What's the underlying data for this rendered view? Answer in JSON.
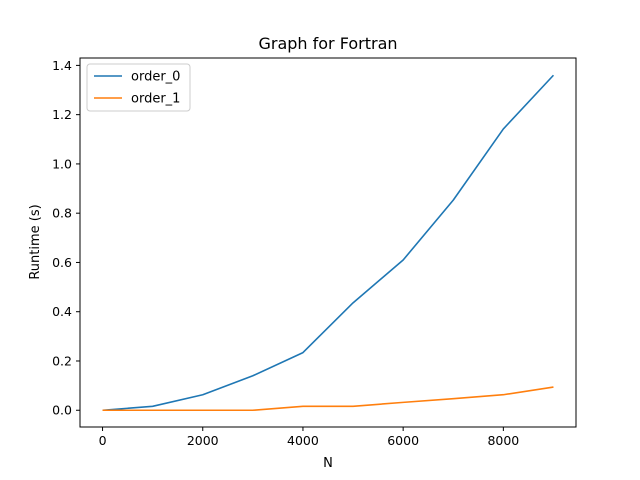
{
  "chart_data": {
    "type": "line",
    "title": "Graph for Fortran",
    "xlabel": "N",
    "ylabel": "Runtime (s)",
    "xlim": [
      -450,
      9450
    ],
    "ylim": [
      -0.068,
      1.43
    ],
    "xticks": [
      0,
      2000,
      4000,
      6000,
      8000
    ],
    "xtick_labels": [
      "0",
      "2000",
      "4000",
      "6000",
      "8000"
    ],
    "yticks": [
      0.0,
      0.2,
      0.4,
      0.6,
      0.8,
      1.0,
      1.2,
      1.4
    ],
    "ytick_labels": [
      "0.0",
      "0.2",
      "0.4",
      "0.6",
      "0.8",
      "1.0",
      "1.2",
      "1.4"
    ],
    "grid": false,
    "legend_position": "top-left",
    "x": [
      0,
      1000,
      2000,
      3000,
      4000,
      5000,
      6000,
      7000,
      8000,
      9000
    ],
    "series": [
      {
        "name": "order_0",
        "color": "#1f77b4",
        "values": [
          0.0,
          0.016,
          0.063,
          0.14,
          0.234,
          0.436,
          0.61,
          0.853,
          1.142,
          1.36
        ]
      },
      {
        "name": "order_1",
        "color": "#ff7f0e",
        "values": [
          0.0,
          0.0,
          0.0,
          0.0,
          0.016,
          0.016,
          0.032,
          0.047,
          0.063,
          0.094
        ]
      }
    ]
  }
}
